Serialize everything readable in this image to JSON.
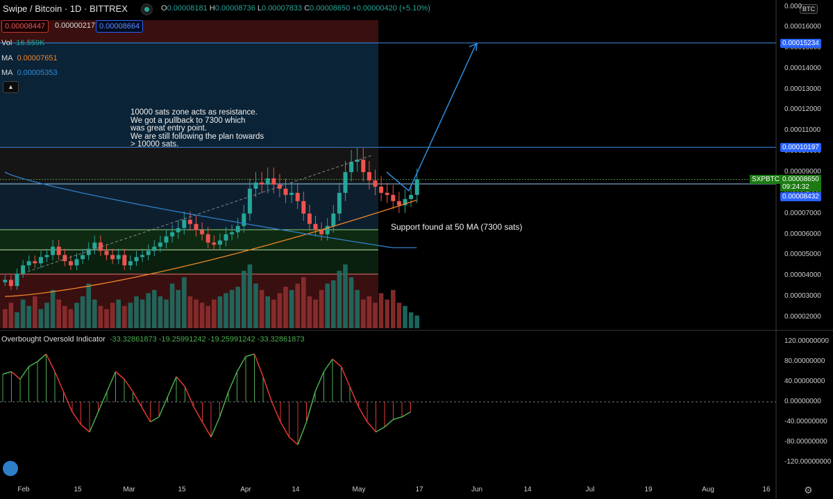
{
  "header": {
    "title": "Swipe / Bitcoin · 1D · BITTREX",
    "ohlc": {
      "o_label": "O",
      "o": "0.00008181",
      "h_label": "H",
      "h": "0.00008736",
      "l_label": "L",
      "l": "0.00007833",
      "c_label": "C",
      "c": "0.00008650",
      "change": "+0.00000420 (+5.10%)"
    },
    "bid": "0.00008447",
    "spread": "0.00000217",
    "ask": "0.00008664"
  },
  "legend": {
    "vol_label": "Vol",
    "vol_value": "16.559K",
    "ma1_label": "MA",
    "ma1_value": "0.00007651",
    "ma2_label": "MA",
    "ma2_value": "0.00005353"
  },
  "annotations": {
    "note1": "10000 sats zone acts as resistance.\nWe got a pullback to 7300 which\nwas great entry point.\nWe are still following the plan towards\n> 10000 sats.",
    "note2": "Support found at 50 MA (7300 sats)"
  },
  "indicator": {
    "title": "Overbought Oversold Indicator",
    "values": "-33.32861873  -19.25991242  -19.25991242  -33.32861873"
  },
  "price_axis": {
    "currency": "BTC",
    "top_label": "0.000",
    "ticks": [
      "0.00016000",
      "0.00015000",
      "0.00014000",
      "0.00013000",
      "0.00012000",
      "0.00011000",
      "0.00010000",
      "0.00009000",
      "0.00008000",
      "0.00007000",
      "0.00006000",
      "0.00005000",
      "0.00004000",
      "0.00003000",
      "0.00002000"
    ],
    "tags": {
      "target": "0.00015234",
      "resistance": "0.00010197",
      "support": "0.00008432",
      "last": "0.00008650",
      "countdown": "09:24:32",
      "symbol": "SXPBTC"
    }
  },
  "osc_axis": {
    "ticks": [
      "120.00000000",
      "80.00000000",
      "40.00000000",
      "0.00000000",
      "-40.00000000",
      "-80.00000000",
      "-120.00000000"
    ]
  },
  "time_axis": {
    "labels": [
      "Feb",
      "15",
      "Mar",
      "15",
      "Apr",
      "14",
      "May",
      "17",
      "Jun",
      "14",
      "Jul",
      "19",
      "Aug",
      "16"
    ]
  },
  "colors": {
    "up": "#26a69a",
    "down": "#ef5350",
    "ma_fast": "#f0862a",
    "ma_slow": "#2f7fc8",
    "line": "#2f8ee0",
    "osc_up": "#4caf50",
    "osc_down": "#e53935"
  },
  "chart_data": {
    "type": "candlestick",
    "symbol": "SXPBTC",
    "timeframe": "1D",
    "x_labels": [
      "Feb",
      "15",
      "Mar",
      "15",
      "Apr",
      "14",
      "May",
      "17",
      "Jun",
      "14",
      "Jul",
      "19",
      "Aug",
      "16"
    ],
    "y_range": [
      1.5e-05,
      0.000171
    ],
    "horizontal_levels": [
      0.00015234,
      0.00010197,
      8.432e-05,
      6.1e-05,
      5.15e-05,
      3.95e-05
    ],
    "close_series": [
      3.8e-05,
      3.5e-05,
      4.1e-05,
      4.5e-05,
      4.7e-05,
      4.6e-05,
      4.9e-05,
      5e-05,
      5.4e-05,
      5e-05,
      4.7e-05,
      4.5e-05,
      4.8e-05,
      5e-05,
      5.3e-05,
      5.6e-05,
      5.2e-05,
      5e-05,
      4.8e-05,
      5e-05,
      4.5e-05,
      4.7e-05,
      4.9e-05,
      5e-05,
      5.2e-05,
      5.4e-05,
      5.6e-05,
      5.9e-05,
      6.1e-05,
      6.3e-05,
      6.7e-05,
      6.5e-05,
      6.2e-05,
      6e-05,
      5.6e-05,
      5.5e-05,
      5.7e-05,
      6e-05,
      6.1e-05,
      6.4e-05,
      7e-05,
      8.2e-05,
      8.5e-05,
      8.4e-05,
      8.7e-05,
      8.4e-05,
      8.2e-05,
      7.9e-05,
      8e-05,
      7.6e-05,
      7e-05,
      6.5e-05,
      6.2e-05,
      6e-05,
      6.4e-05,
      7e-05,
      8e-05,
      9e-05,
      9.5e-05,
      9.6e-05,
      9e-05,
      8.6e-05,
      8.3e-05,
      8e-05,
      7.9e-05,
      7.6e-05,
      7.4e-05,
      7.7e-05,
      7.9e-05,
      8.65e-05
    ],
    "volume_series": [
      6,
      8,
      5,
      9,
      7,
      10,
      6,
      8,
      12,
      9,
      7,
      6,
      8,
      10,
      14,
      9,
      7,
      6,
      8,
      9,
      7,
      8,
      10,
      9,
      11,
      12,
      10,
      9,
      14,
      12,
      16,
      10,
      9,
      8,
      7,
      9,
      10,
      11,
      12,
      13,
      18,
      20,
      14,
      12,
      10,
      9,
      11,
      13,
      12,
      14,
      16,
      10,
      9,
      12,
      14,
      15,
      18,
      20,
      16,
      12,
      9,
      10,
      8,
      11,
      9,
      12,
      8,
      7,
      5,
      4
    ],
    "osc_series": [
      55,
      60,
      45,
      70,
      80,
      95,
      60,
      20,
      -20,
      -45,
      -60,
      -20,
      20,
      60,
      45,
      20,
      -10,
      -40,
      -30,
      10,
      50,
      30,
      -10,
      -40,
      -70,
      -30,
      20,
      60,
      90,
      95,
      50,
      0,
      -40,
      -70,
      -85,
      -40,
      20,
      60,
      85,
      70,
      30,
      -10,
      -40,
      -60,
      -50,
      -35,
      -30,
      -20
    ],
    "ma_fast": {
      "label": "MA",
      "last": 7.651e-05
    },
    "ma_slow": {
      "label": "MA",
      "last": 5.353e-05
    }
  }
}
